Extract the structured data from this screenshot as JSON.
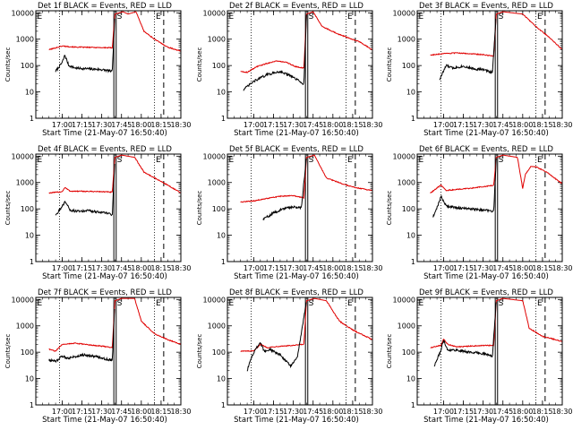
{
  "chart_data": {
    "type": "line",
    "panel_count": 9,
    "series_colors": {
      "events": "#000000",
      "lld": "#e00000"
    },
    "x": {
      "ticks": [
        "17:00",
        "17:15",
        "17:30",
        "17:45",
        "18:00",
        "18:15",
        "18:30"
      ],
      "label": "Start Time (21-May-07 16:50:40)",
      "range_minutes": [
        -10,
        100
      ]
    },
    "y": {
      "scale": "log",
      "ticks": [
        "1",
        "10",
        "100",
        "1000",
        "10000"
      ],
      "label": "Counts/sec",
      "range": [
        1,
        12000
      ]
    },
    "markers": {
      "dotted_minutes": [
        8,
        80
      ],
      "solid_minutes": [
        50
      ],
      "dashed_minutes": [
        87
      ]
    },
    "panels": [
      {
        "title": "Det 1f BLACK = Events, RED = LLD",
        "marks": [
          "E",
          "S",
          "E"
        ],
        "sep": 1.1,
        "events": [
          [
            5,
            60
          ],
          [
            10,
            130
          ],
          [
            12,
            250
          ],
          [
            15,
            100
          ],
          [
            20,
            80
          ],
          [
            30,
            75
          ],
          [
            40,
            70
          ],
          [
            48,
            60
          ],
          [
            50,
            9000
          ]
        ],
        "lld": [
          [
            0,
            400
          ],
          [
            10,
            550
          ],
          [
            20,
            500
          ],
          [
            30,
            490
          ],
          [
            40,
            480
          ],
          [
            48,
            470
          ],
          [
            50,
            9000
          ],
          [
            56,
            11000
          ],
          [
            60,
            9000
          ],
          [
            66,
            11000
          ],
          [
            72,
            2000
          ],
          [
            80,
            1000
          ],
          [
            90,
            500
          ],
          [
            100,
            350
          ]
        ]
      },
      {
        "title": "Det 2f BLACK = Events, RED = LLD",
        "marks": [
          "E",
          "S",
          "E"
        ],
        "sep": 0.5,
        "events": [
          [
            2,
            12
          ],
          [
            10,
            25
          ],
          [
            20,
            45
          ],
          [
            30,
            60
          ],
          [
            38,
            40
          ],
          [
            45,
            25
          ],
          [
            48,
            20
          ],
          [
            50,
            9000
          ]
        ],
        "lld": [
          [
            0,
            60
          ],
          [
            5,
            55
          ],
          [
            12,
            90
          ],
          [
            20,
            120
          ],
          [
            27,
            150
          ],
          [
            35,
            130
          ],
          [
            42,
            90
          ],
          [
            48,
            80
          ],
          [
            50,
            9000
          ],
          [
            55,
            11000
          ],
          [
            62,
            3000
          ],
          [
            75,
            1500
          ],
          [
            90,
            800
          ],
          [
            100,
            400
          ]
        ]
      },
      {
        "title": "Det 3f BLACK = Events, RED = LLD",
        "marks": [
          "E",
          "S",
          "E"
        ],
        "sep": 0.75,
        "events": [
          [
            7,
            30
          ],
          [
            12,
            100
          ],
          [
            17,
            80
          ],
          [
            25,
            95
          ],
          [
            33,
            75
          ],
          [
            40,
            70
          ],
          [
            47,
            55
          ],
          [
            50,
            9000
          ]
        ],
        "lld": [
          [
            0,
            250
          ],
          [
            10,
            280
          ],
          [
            20,
            300
          ],
          [
            30,
            280
          ],
          [
            40,
            260
          ],
          [
            48,
            230
          ],
          [
            50,
            9000
          ],
          [
            55,
            11000
          ],
          [
            70,
            9000
          ],
          [
            80,
            3000
          ],
          [
            90,
            1200
          ],
          [
            100,
            400
          ]
        ]
      },
      {
        "title": "Det 4f BLACK = Events, RED = LLD",
        "marks": [
          "E",
          "S",
          "E"
        ],
        "sep": 0.7,
        "events": [
          [
            5,
            60
          ],
          [
            10,
            120
          ],
          [
            12,
            200
          ],
          [
            16,
            90
          ],
          [
            22,
            80
          ],
          [
            30,
            85
          ],
          [
            38,
            75
          ],
          [
            44,
            70
          ],
          [
            48,
            60
          ],
          [
            50,
            9000
          ]
        ],
        "lld": [
          [
            0,
            400
          ],
          [
            10,
            450
          ],
          [
            12,
            650
          ],
          [
            16,
            470
          ],
          [
            30,
            460
          ],
          [
            40,
            450
          ],
          [
            48,
            430
          ],
          [
            50,
            9000
          ],
          [
            55,
            11000
          ],
          [
            65,
            9000
          ],
          [
            72,
            2500
          ],
          [
            80,
            1500
          ],
          [
            90,
            800
          ],
          [
            100,
            400
          ]
        ]
      },
      {
        "title": "Det 5f BLACK = Events, RED = LLD",
        "marks": [
          "E",
          "S",
          "E"
        ],
        "sep": 0.25,
        "events": [
          [
            17,
            40
          ],
          [
            25,
            70
          ],
          [
            32,
            100
          ],
          [
            40,
            120
          ],
          [
            46,
            110
          ],
          [
            50,
            9000
          ]
        ],
        "lld": [
          [
            0,
            180
          ],
          [
            10,
            200
          ],
          [
            20,
            250
          ],
          [
            30,
            300
          ],
          [
            40,
            320
          ],
          [
            48,
            260
          ],
          [
            50,
            9000
          ],
          [
            56,
            11000
          ],
          [
            65,
            1500
          ],
          [
            80,
            800
          ],
          [
            90,
            600
          ],
          [
            100,
            500
          ]
        ]
      },
      {
        "title": "Det 6f BLACK = Events, RED = LLD",
        "marks": [
          "E",
          "S",
          "E"
        ],
        "sep": 0.9,
        "events": [
          [
            2,
            50
          ],
          [
            6,
            150
          ],
          [
            8,
            300
          ],
          [
            12,
            130
          ],
          [
            20,
            110
          ],
          [
            30,
            100
          ],
          [
            40,
            90
          ],
          [
            48,
            80
          ],
          [
            50,
            9000
          ]
        ],
        "lld": [
          [
            0,
            400
          ],
          [
            8,
            800
          ],
          [
            12,
            500
          ],
          [
            20,
            550
          ],
          [
            30,
            600
          ],
          [
            40,
            700
          ],
          [
            48,
            800
          ],
          [
            50,
            9000
          ],
          [
            55,
            11000
          ],
          [
            66,
            9000
          ],
          [
            70,
            600
          ],
          [
            72,
            2000
          ],
          [
            76,
            4000
          ],
          [
            80,
            4000
          ],
          [
            88,
            2500
          ],
          [
            100,
            900
          ]
        ]
      },
      {
        "title": "Det 7f BLACK = Events, RED = LLD",
        "marks": [
          "E",
          "S",
          "E"
        ],
        "sep": 0.5,
        "events": [
          [
            0,
            50
          ],
          [
            5,
            45
          ],
          [
            10,
            70
          ],
          [
            15,
            60
          ],
          [
            25,
            80
          ],
          [
            35,
            70
          ],
          [
            43,
            55
          ],
          [
            48,
            50
          ],
          [
            50,
            9000
          ]
        ],
        "lld": [
          [
            0,
            130
          ],
          [
            5,
            110
          ],
          [
            10,
            200
          ],
          [
            20,
            220
          ],
          [
            30,
            190
          ],
          [
            40,
            170
          ],
          [
            48,
            150
          ],
          [
            50,
            9000
          ],
          [
            55,
            11000
          ],
          [
            65,
            11000
          ],
          [
            70,
            1500
          ],
          [
            80,
            500
          ],
          [
            90,
            300
          ],
          [
            100,
            200
          ]
        ]
      },
      {
        "title": "Det 8f BLACK = Events, RED = LLD",
        "marks": [
          "E",
          "S",
          "E"
        ],
        "sep": 0.35,
        "events": [
          [
            5,
            20
          ],
          [
            8,
            60
          ],
          [
            12,
            150
          ],
          [
            15,
            220
          ],
          [
            18,
            110
          ],
          [
            22,
            130
          ],
          [
            26,
            100
          ],
          [
            30,
            80
          ],
          [
            38,
            30
          ],
          [
            43,
            60
          ],
          [
            50,
            9000
          ]
        ],
        "lld": [
          [
            0,
            110
          ],
          [
            10,
            110
          ],
          [
            15,
            200
          ],
          [
            20,
            150
          ],
          [
            30,
            170
          ],
          [
            40,
            180
          ],
          [
            48,
            200
          ],
          [
            50,
            9000
          ],
          [
            56,
            11000
          ],
          [
            65,
            9000
          ],
          [
            75,
            1500
          ],
          [
            85,
            700
          ],
          [
            95,
            400
          ],
          [
            100,
            300
          ]
        ]
      },
      {
        "title": "Det 9f BLACK = Events, RED = LLD",
        "marks": [
          "E",
          "S",
          "E"
        ],
        "sep": 0.5,
        "events": [
          [
            3,
            30
          ],
          [
            8,
            120
          ],
          [
            10,
            300
          ],
          [
            13,
            120
          ],
          [
            20,
            120
          ],
          [
            30,
            100
          ],
          [
            40,
            90
          ],
          [
            47,
            70
          ],
          [
            50,
            9000
          ]
        ],
        "lld": [
          [
            0,
            150
          ],
          [
            8,
            180
          ],
          [
            10,
            320
          ],
          [
            13,
            200
          ],
          [
            20,
            160
          ],
          [
            30,
            170
          ],
          [
            40,
            180
          ],
          [
            48,
            180
          ],
          [
            50,
            9000
          ],
          [
            55,
            11000
          ],
          [
            70,
            9000
          ],
          [
            75,
            800
          ],
          [
            85,
            400
          ],
          [
            95,
            300
          ],
          [
            100,
            250
          ]
        ]
      }
    ]
  }
}
